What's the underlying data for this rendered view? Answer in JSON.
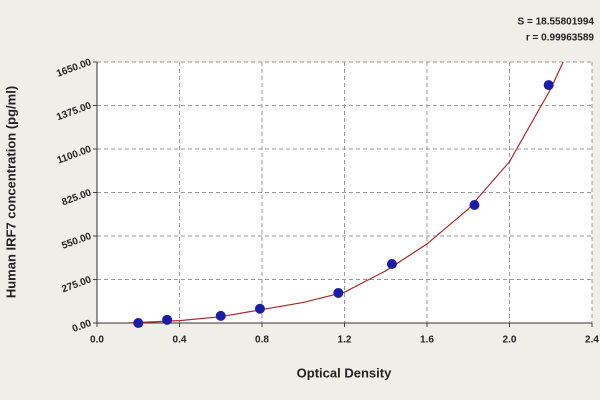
{
  "chart_data": {
    "type": "scatter",
    "xlabel": "Optical Density",
    "ylabel": "Human IRF7 concentration (pg/ml)",
    "annotations": [
      "S = 18.55801994",
      "r = 0.99963589"
    ],
    "xlim": [
      0,
      2.4
    ],
    "ylim": [
      0,
      1650
    ],
    "xticks": [
      {
        "value": 0,
        "label": "0.0"
      },
      0.4,
      0.8,
      1.2,
      1.6,
      {
        "value": 2,
        "label": "2.0"
      },
      2.4
    ],
    "yticks": [
      {
        "value": 0,
        "label": "0.00"
      },
      {
        "value": 275,
        "label": "275.00"
      },
      {
        "value": 550,
        "label": "550.00"
      },
      {
        "value": 825,
        "label": "825.00"
      },
      {
        "value": 1100,
        "label": "1100.00"
      },
      {
        "value": 1375,
        "label": "1375.00"
      },
      {
        "value": 1650,
        "label": "1650.00"
      }
    ],
    "grid": true,
    "series": [
      {
        "type": "scatter",
        "color": "#1c1ca8",
        "x": [
          0.2,
          0.34,
          0.6,
          0.79,
          1.17,
          1.43,
          1.83,
          2.19
        ],
        "values": [
          0,
          20,
          45,
          90,
          190,
          373,
          746,
          1504
        ]
      },
      {
        "type": "line",
        "color": "#a52a2a",
        "x": [
          0.15,
          0.4,
          0.6,
          0.8,
          1.0,
          1.2,
          1.4,
          1.6,
          1.8,
          2.0,
          2.2,
          2.26
        ],
        "values": [
          0,
          15,
          40,
          85,
          130,
          195,
          330,
          500,
          720,
          1020,
          1480,
          1650
        ]
      }
    ]
  }
}
